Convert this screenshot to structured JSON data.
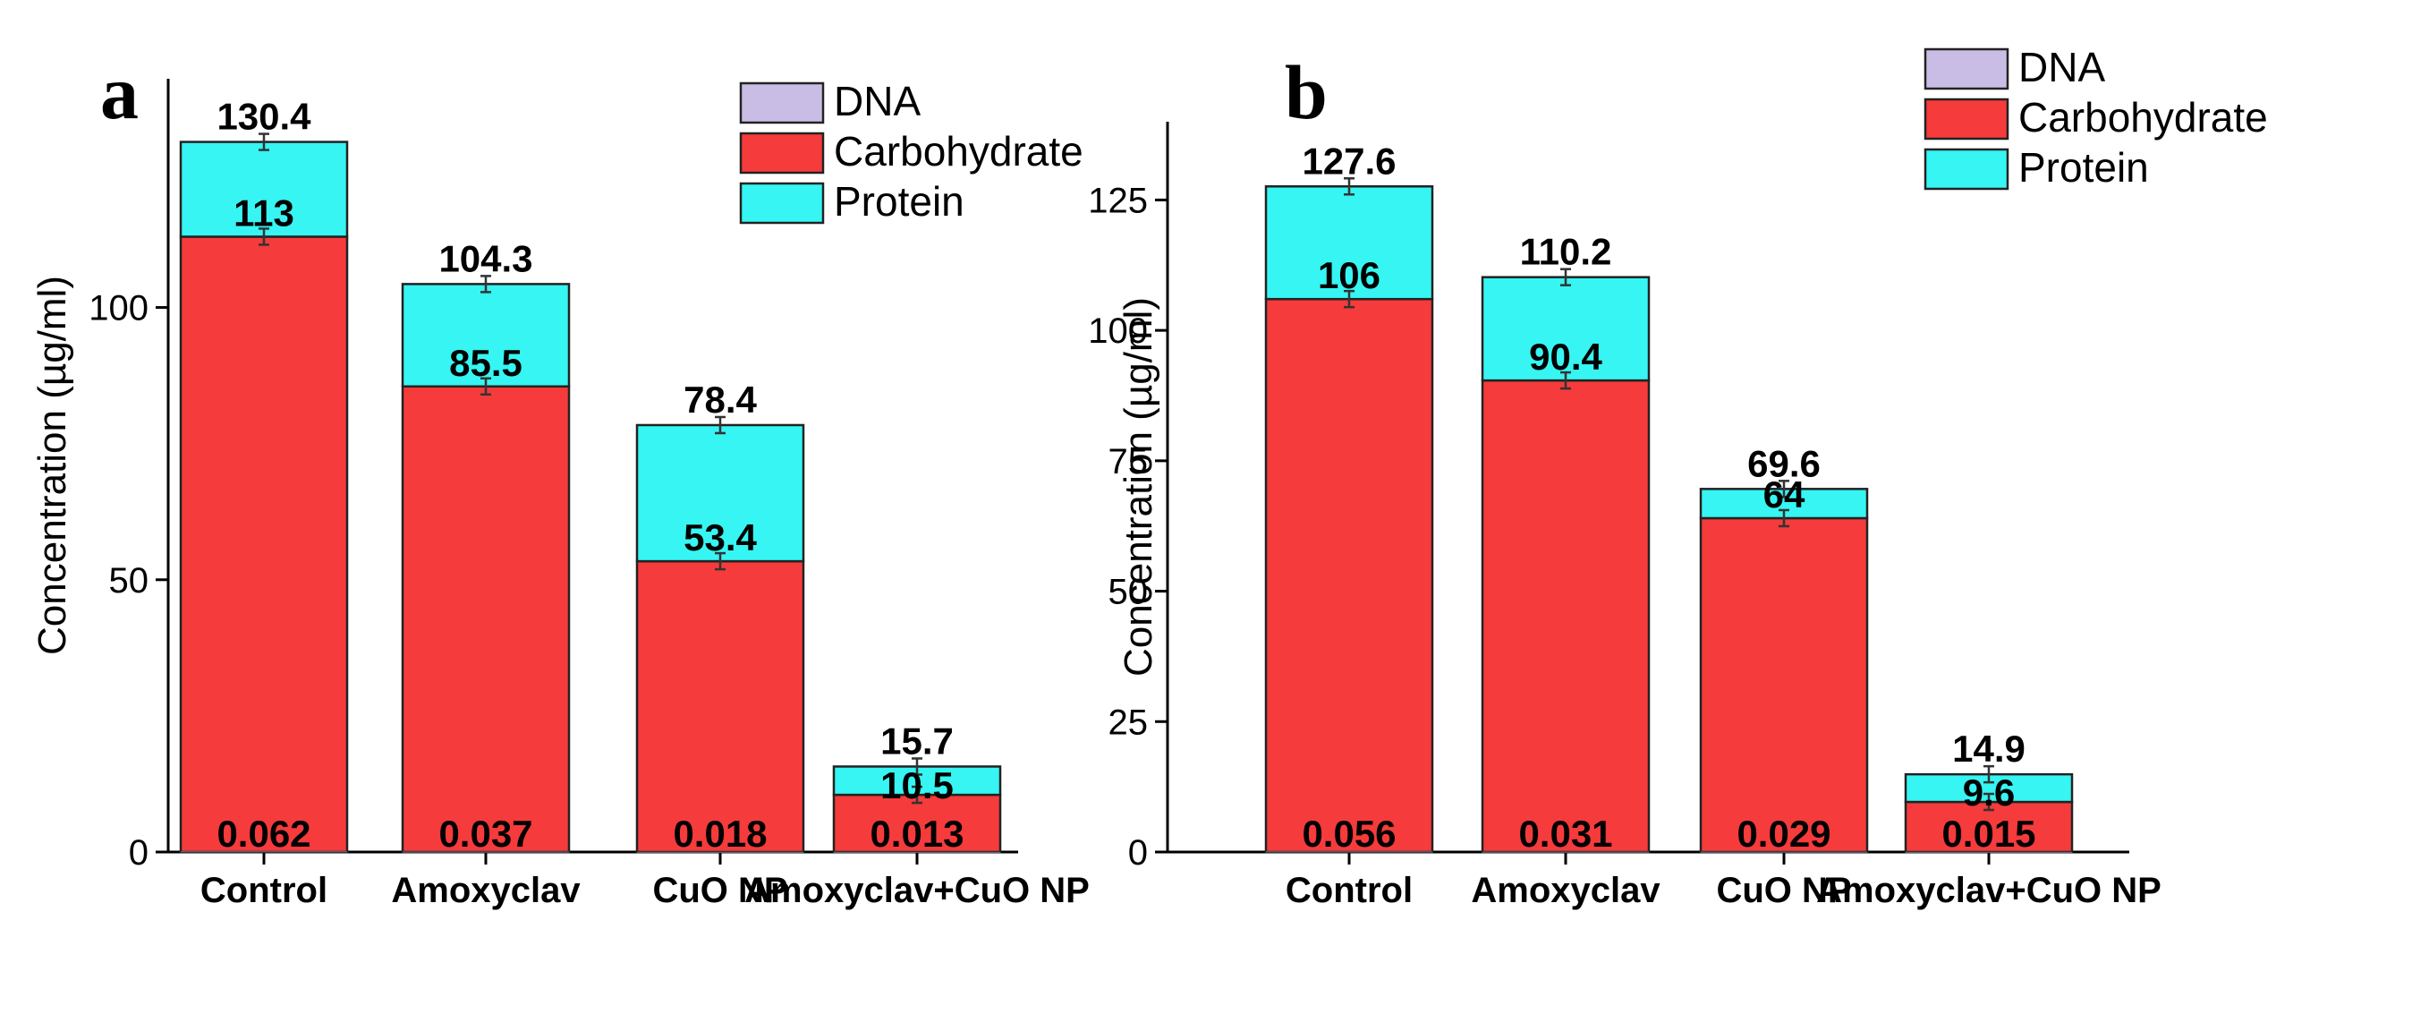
{
  "colors": {
    "DNA": "#c9bde6",
    "Carbohydrate": "#f53b3b",
    "Protein": "#36f5f2",
    "bar_edge": "#222222"
  },
  "chart_data": [
    {
      "panel": "a",
      "type": "bar",
      "stacked": true,
      "categories": [
        "Control",
        "Amoxyclav",
        "CuO NP",
        "Amoxyclav+CuO NP"
      ],
      "ylabel": "Concentration (µg/ml)",
      "ylim": [
        0,
        142
      ],
      "yticks": [
        0,
        50,
        100
      ],
      "legend": {
        "placement": "top-right",
        "entries": [
          "DNA",
          "Carbohydrate",
          "Protein"
        ]
      },
      "series": [
        {
          "name": "DNA",
          "values": [
            0.062,
            0.037,
            0.018,
            0.013
          ],
          "labels": [
            "0.062",
            "0.037",
            "0.018",
            "0.013"
          ]
        },
        {
          "name": "Carbohydrate",
          "values": [
            113,
            85.5,
            53.4,
            10.5
          ],
          "labels": [
            "113",
            "85.5",
            "53.4",
            "10.5"
          ]
        },
        {
          "name": "Protein",
          "values": [
            17.4,
            18.8,
            25.0,
            5.2
          ]
        }
      ],
      "totals": [
        130.4,
        104.3,
        78.4,
        15.7
      ],
      "total_labels": [
        "130.4",
        "104.3",
        "78.4",
        "15.7"
      ],
      "error_bars": true
    },
    {
      "panel": "b",
      "type": "bar",
      "stacked": true,
      "categories": [
        "Control",
        "Amoxyclav",
        "CuO NP",
        "Amoxyclav+CuO NP"
      ],
      "ylabel": "Concentration (µg/ml)",
      "ylim": [
        0,
        140
      ],
      "yticks": [
        0,
        25,
        50,
        75,
        100,
        125
      ],
      "legend": {
        "placement": "top-right",
        "entries": [
          "DNA",
          "Carbohydrate",
          "Protein"
        ]
      },
      "series": [
        {
          "name": "DNA",
          "values": [
            0.056,
            0.031,
            0.029,
            0.015
          ],
          "labels": [
            "0.056",
            "0.031",
            "0.029",
            "0.015"
          ]
        },
        {
          "name": "Carbohydrate",
          "values": [
            106,
            90.4,
            64,
            9.6
          ],
          "labels": [
            "106",
            "90.4",
            "64",
            "9.6"
          ]
        },
        {
          "name": "Protein",
          "values": [
            21.6,
            19.8,
            5.6,
            5.3
          ]
        }
      ],
      "totals": [
        127.6,
        110.2,
        69.6,
        14.9
      ],
      "total_labels": [
        "127.6",
        "110.2",
        "69.6",
        "14.9"
      ],
      "error_bars": true
    }
  ]
}
